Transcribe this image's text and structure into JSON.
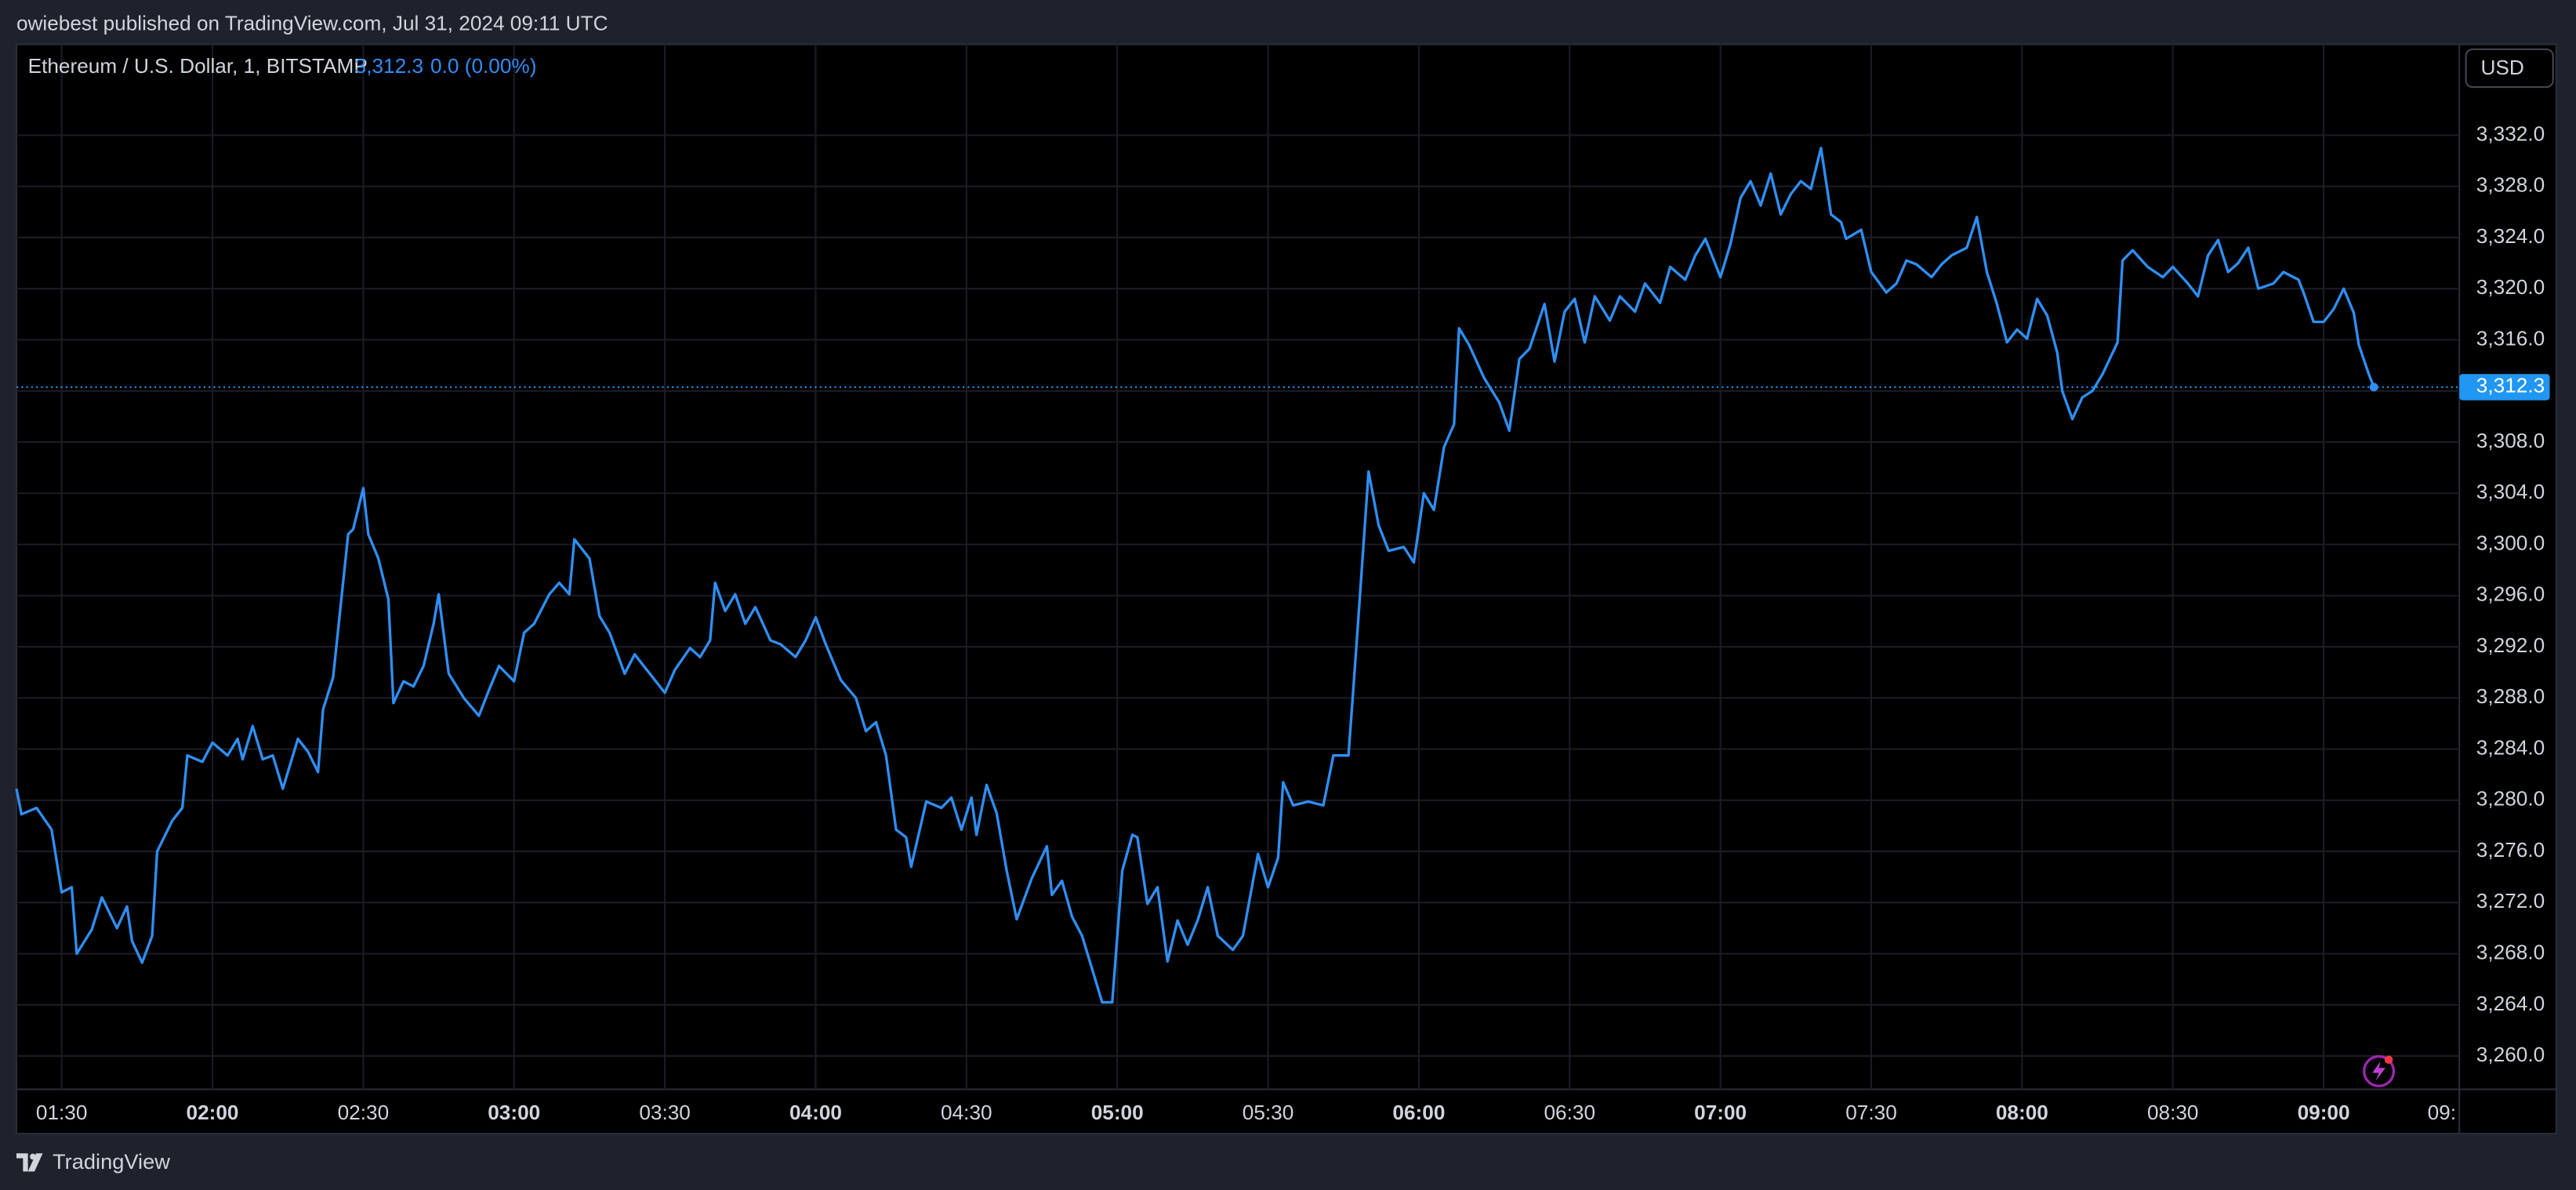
{
  "header": {
    "published": "owiebest published on TradingView.com, Jul 31, 2024 09:11 UTC",
    "brand": "TradingView",
    "currency_button": "USD"
  },
  "chart_data": {
    "type": "line",
    "legend": {
      "price": "3,312.3",
      "change": "0.0 (0.00%)"
    },
    "x": [
      "01:21",
      "01:22",
      "01:25",
      "01:28",
      "01:30",
      "01:32",
      "01:33",
      "01:36",
      "01:38",
      "01:41",
      "01:43",
      "01:44",
      "01:46",
      "01:48",
      "01:49",
      "01:52",
      "01:54",
      "01:55",
      "01:58",
      "02:00",
      "02:03",
      "02:05",
      "02:06",
      "02:08",
      "02:10",
      "02:12",
      "02:14",
      "02:17",
      "02:19",
      "02:21",
      "02:22",
      "02:24",
      "02:27",
      "02:28",
      "02:30",
      "02:31",
      "02:33",
      "02:35",
      "02:36",
      "02:38",
      "02:40",
      "02:42",
      "02:44",
      "02:45",
      "02:47",
      "02:50",
      "02:53",
      "02:55",
      "02:57",
      "03:00",
      "03:02",
      "03:04",
      "03:07",
      "03:09",
      "03:11",
      "03:12",
      "03:15",
      "03:17",
      "03:19",
      "03:22",
      "03:24",
      "03:27",
      "03:30",
      "03:32",
      "03:35",
      "03:37",
      "03:39",
      "03:40",
      "03:42",
      "03:44",
      "03:46",
      "03:48",
      "03:51",
      "03:53",
      "03:56",
      "03:58",
      "04:00",
      "04:02",
      "04:05",
      "04:08",
      "04:10",
      "04:12",
      "04:14",
      "04:16",
      "04:18",
      "04:19",
      "04:22",
      "04:25",
      "04:27",
      "04:29",
      "04:31",
      "04:32",
      "04:34",
      "04:36",
      "04:38",
      "04:40",
      "04:43",
      "04:46",
      "04:47",
      "04:49",
      "04:51",
      "04:53",
      "04:55",
      "04:57",
      "04:59",
      "05:01",
      "05:03",
      "05:04",
      "05:06",
      "05:08",
      "05:10",
      "05:12",
      "05:14",
      "05:16",
      "05:18",
      "05:20",
      "05:23",
      "05:25",
      "05:28",
      "05:30",
      "05:32",
      "05:33",
      "05:35",
      "05:38",
      "05:41",
      "05:43",
      "05:46",
      "05:47",
      "05:48",
      "05:50",
      "05:52",
      "05:54",
      "05:57",
      "05:59",
      "06:01",
      "06:03",
      "06:05",
      "06:07",
      "06:08",
      "06:10",
      "06:13",
      "06:16",
      "06:18",
      "06:20",
      "06:22",
      "06:25",
      "06:27",
      "06:29",
      "06:31",
      "06:33",
      "06:35",
      "06:38",
      "06:40",
      "06:43",
      "06:45",
      "06:48",
      "06:50",
      "06:53",
      "06:55",
      "06:57",
      "07:00",
      "07:02",
      "07:04",
      "07:06",
      "07:08",
      "07:10",
      "07:12",
      "07:14",
      "07:16",
      "07:18",
      "07:20",
      "07:22",
      "07:24",
      "07:25",
      "07:28",
      "07:30",
      "07:33",
      "07:35",
      "07:37",
      "07:39",
      "07:42",
      "07:44",
      "07:46",
      "07:49",
      "07:51",
      "07:53",
      "07:55",
      "07:57",
      "07:59",
      "08:01",
      "08:03",
      "08:05",
      "08:07",
      "08:08",
      "08:10",
      "08:12",
      "08:14",
      "08:16",
      "08:19",
      "08:20",
      "08:22",
      "08:25",
      "08:28",
      "08:30",
      "08:33",
      "08:35",
      "08:37",
      "08:39",
      "08:41",
      "08:43",
      "08:45",
      "08:47",
      "08:50",
      "08:52",
      "08:55",
      "08:56",
      "08:58",
      "09:00",
      "09:02",
      "09:04",
      "09:06",
      "09:07",
      "09:09",
      "09:10"
    ],
    "series": [
      {
        "name": "Ethereum / U.S. Dollar, 1, BITSTAMP",
        "color": "#2f8ef4",
        "values": [
          3280.9,
          3278.9,
          3279.4,
          3277.7,
          3272.8,
          3273.2,
          3268.0,
          3269.9,
          3272.4,
          3270.0,
          3271.7,
          3269.0,
          3267.3,
          3269.4,
          3276.0,
          3278.4,
          3279.4,
          3283.5,
          3283.0,
          3284.5,
          3283.5,
          3284.8,
          3283.2,
          3285.8,
          3283.2,
          3283.5,
          3280.9,
          3284.8,
          3283.8,
          3282.2,
          3287.1,
          3289.6,
          3300.8,
          3301.2,
          3304.4,
          3300.8,
          3298.9,
          3295.7,
          3287.6,
          3289.3,
          3288.9,
          3290.5,
          3293.8,
          3296.1,
          3289.9,
          3288.0,
          3286.6,
          3288.6,
          3290.5,
          3289.3,
          3293.1,
          3293.8,
          3296.1,
          3297.0,
          3296.1,
          3300.4,
          3298.9,
          3294.4,
          3293.1,
          3289.9,
          3291.4,
          3289.9,
          3288.4,
          3290.2,
          3291.9,
          3291.2,
          3292.5,
          3297.0,
          3294.8,
          3296.1,
          3293.8,
          3295.1,
          3292.5,
          3292.2,
          3291.2,
          3292.5,
          3294.3,
          3292.2,
          3289.4,
          3288.0,
          3285.4,
          3286.1,
          3283.5,
          3277.7,
          3277.1,
          3274.8,
          3279.9,
          3279.4,
          3280.2,
          3277.7,
          3280.2,
          3277.3,
          3281.2,
          3279.0,
          3274.5,
          3270.7,
          3273.9,
          3276.4,
          3272.6,
          3273.7,
          3270.9,
          3269.4,
          3266.8,
          3264.2,
          3264.2,
          3274.5,
          3277.3,
          3277.1,
          3271.9,
          3273.2,
          3267.4,
          3270.6,
          3268.7,
          3270.6,
          3273.2,
          3269.4,
          3268.3,
          3269.4,
          3275.8,
          3273.2,
          3275.5,
          3281.4,
          3279.6,
          3279.9,
          3279.6,
          3283.5,
          3283.5,
          3288.9,
          3294.4,
          3305.7,
          3301.5,
          3299.5,
          3299.8,
          3298.6,
          3304.0,
          3302.7,
          3307.6,
          3309.4,
          3316.9,
          3315.6,
          3313.0,
          3311.1,
          3308.9,
          3314.5,
          3315.3,
          3318.8,
          3314.3,
          3318.2,
          3319.2,
          3315.8,
          3319.4,
          3317.5,
          3319.4,
          3318.2,
          3320.4,
          3318.9,
          3321.7,
          3320.7,
          3322.6,
          3323.9,
          3320.9,
          3323.5,
          3327.1,
          3328.4,
          3326.5,
          3329.0,
          3325.8,
          3327.4,
          3328.4,
          3327.8,
          3331.0,
          3325.8,
          3325.2,
          3323.9,
          3324.6,
          3321.3,
          3319.7,
          3320.4,
          3322.2,
          3321.9,
          3320.9,
          3321.9,
          3322.6,
          3323.2,
          3325.6,
          3321.3,
          3318.8,
          3315.8,
          3316.8,
          3316.1,
          3319.2,
          3317.9,
          3315.0,
          3312.0,
          3309.8,
          3311.5,
          3312.0,
          3313.3,
          3315.8,
          3322.2,
          3323.0,
          3321.7,
          3320.9,
          3321.7,
          3320.4,
          3319.4,
          3322.6,
          3323.8,
          3321.3,
          3322.0,
          3323.2,
          3320.0,
          3320.4,
          3321.3,
          3320.7,
          3319.7,
          3317.4,
          3317.4,
          3318.4,
          3320.0,
          3318.1,
          3315.6,
          3313.3,
          3312.3
        ]
      }
    ],
    "xlim": [
      "01:21",
      "09:27"
    ],
    "xticks": [
      "01:30",
      "02:00",
      "02:30",
      "03:00",
      "03:30",
      "04:00",
      "04:30",
      "05:00",
      "05:30",
      "06:00",
      "06:30",
      "07:00",
      "07:30",
      "08:00",
      "08:30",
      "09:00",
      {
        "value": "09:30",
        "label": "09:"
      }
    ],
    "ylim": [
      3257.4,
      3339.1
    ],
    "yticks": [
      {
        "value": 3260,
        "label": "3,260.0"
      },
      {
        "value": 3264,
        "label": "3,264.0"
      },
      {
        "value": 3268,
        "label": "3,268.0"
      },
      {
        "value": 3272,
        "label": "3,272.0"
      },
      {
        "value": 3276,
        "label": "3,276.0"
      },
      {
        "value": 3280,
        "label": "3,280.0"
      },
      {
        "value": 3284,
        "label": "3,284.0"
      },
      {
        "value": 3288,
        "label": "3,288.0"
      },
      {
        "value": 3292,
        "label": "3,292.0"
      },
      {
        "value": 3296,
        "label": "3,296.0"
      },
      {
        "value": 3300,
        "label": "3,300.0"
      },
      {
        "value": 3304,
        "label": "3,304.0"
      },
      {
        "value": 3308,
        "label": "3,308.0"
      },
      {
        "value": 3312,
        "label": "3,312.0"
      },
      {
        "value": 3316,
        "label": "3,316.0"
      },
      {
        "value": 3320,
        "label": "3,320.0"
      },
      {
        "value": 3324,
        "label": "3,324.0"
      },
      {
        "value": 3328,
        "label": "3,328.0"
      },
      {
        "value": 3332,
        "label": "3,332.0"
      }
    ],
    "price_line": {
      "value": 3312.3,
      "label": "3,312.3",
      "color": "#2196f3"
    },
    "grid": true
  }
}
